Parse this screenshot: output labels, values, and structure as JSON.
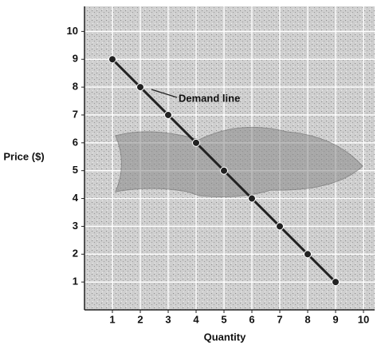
{
  "chart_data": {
    "type": "line",
    "x_label": "Quantity",
    "y_label": "Price ($)",
    "annotation": "Demand line",
    "series": [
      {
        "name": "Demand line",
        "color": "#222222",
        "x": [
          1,
          2,
          3,
          4,
          5,
          6,
          7,
          8,
          9
        ],
        "values": [
          9,
          8,
          7,
          6,
          5,
          4,
          3,
          2,
          1
        ]
      }
    ],
    "xlim": [
      0,
      10.4
    ],
    "ylim": [
      0,
      10.9
    ],
    "xticks": [
      1,
      2,
      3,
      4,
      5,
      6,
      7,
      8,
      9,
      10
    ],
    "yticks": [
      1,
      2,
      3,
      4,
      5,
      6,
      7,
      8,
      9,
      10
    ],
    "grid": true
  }
}
